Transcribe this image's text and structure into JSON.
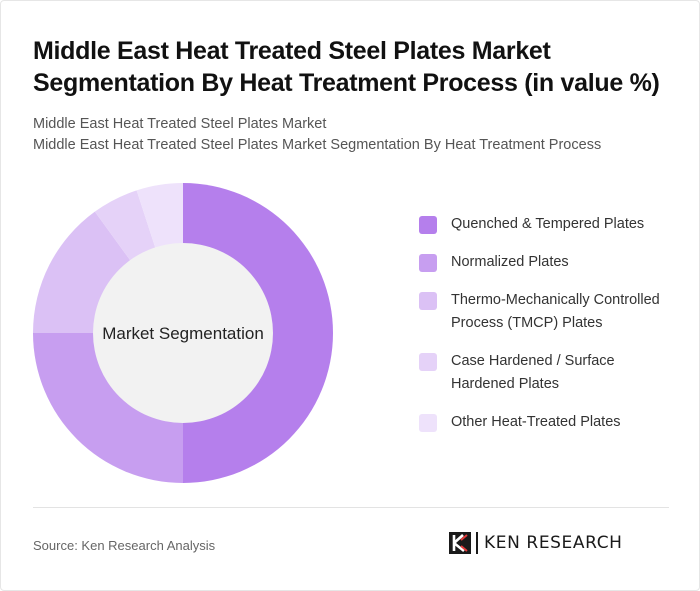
{
  "header": {
    "title": "Middle East Heat Treated Steel Plates Market Segmentation By Heat Treatment Process (in value %)",
    "subtitle_line1": "Middle East Heat Treated Steel Plates Market",
    "subtitle_line2": "Middle East Heat Treated Steel Plates Market Segmentation By Heat Treatment Process"
  },
  "chart_data": {
    "type": "pie",
    "center_label": "Market Segmentation",
    "categories": [
      "Quenched & Tempered Plates",
      "Normalized Plates",
      "Thermo-Mechanically Controlled Process (TMCP) Plates",
      "Case Hardened / Surface Hardened Plates",
      "Other Heat-Treated Plates"
    ],
    "values": [
      50,
      25,
      15,
      5,
      5
    ],
    "colors": [
      "#b57fec",
      "#c79ef0",
      "#dbc1f5",
      "#e5d2f8",
      "#eee2fb"
    ],
    "legend_position": "right"
  },
  "footer": {
    "source": "Source: Ken Research Analysis",
    "logo_text": "KEN RESEARCH"
  }
}
